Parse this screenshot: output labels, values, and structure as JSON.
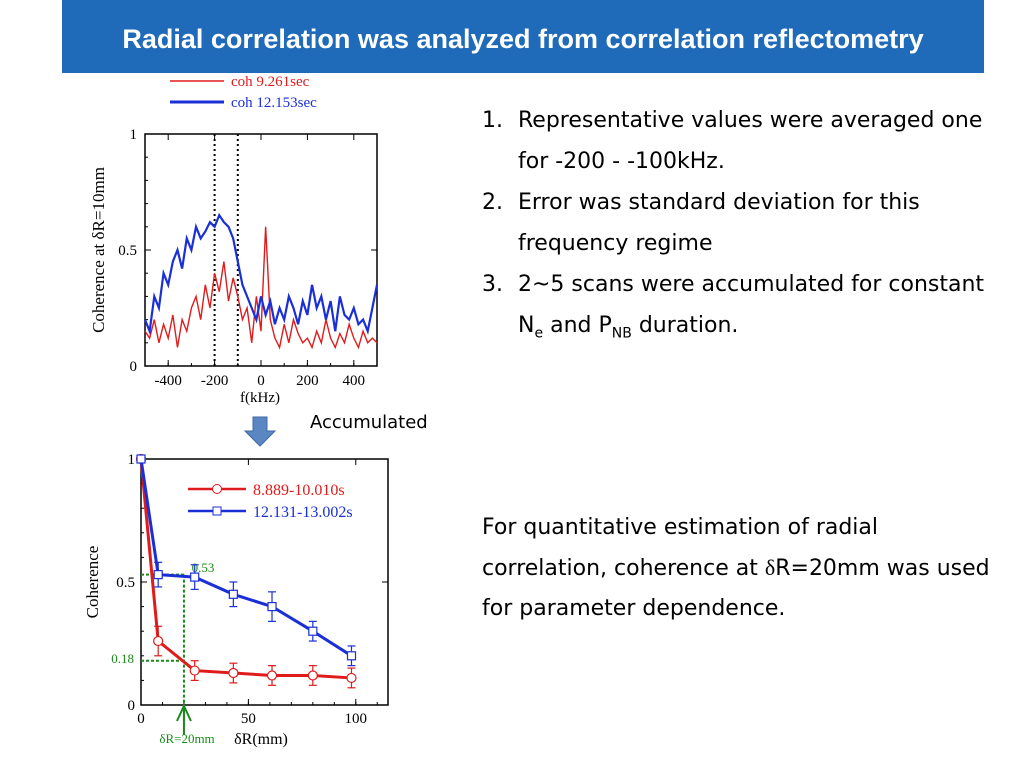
{
  "title": "Radial correlation was analyzed from correlation reflectometry",
  "list": [
    {
      "num": "1.",
      "text": "Representative values were averaged one for -200 - -100kHz."
    },
    {
      "num": "2.",
      "text": "Error was standard deviation for this frequency regime"
    },
    {
      "num": "3.",
      "pre": "2~5 scans were accumulated for constant N",
      "sub1": "e",
      "mid": " and P",
      "sub2": "NB",
      "post": " duration."
    }
  ],
  "paragraph": {
    "pre": "For quantitative estimation of radial correlation, coherence at ",
    "delta": "δ",
    "post": "R=20mm was used for parameter dependence."
  },
  "accumulated_label": "Accumulated",
  "colors": {
    "banner": "#1f6bb9",
    "red": "#e01b1b",
    "blue": "#1a2fd6",
    "green": "#1a8a1a",
    "arrow": "#5a86c2"
  },
  "chart_data": [
    {
      "type": "line",
      "xlabel": "f(kHz)",
      "ylabel": "Coherence at δR=10mm",
      "xlim": [
        -500,
        500
      ],
      "ylim": [
        0,
        1
      ],
      "xticks": [
        "-400",
        "-200",
        "0",
        "200",
        "400"
      ],
      "yticks": [
        "0",
        "0.5",
        "1"
      ],
      "vlines": [
        -200,
        -100
      ],
      "series": [
        {
          "name": "coh 9.261sec",
          "color": "#e01b1b",
          "x": [
            -500,
            -480,
            -460,
            -440,
            -420,
            -400,
            -380,
            -360,
            -340,
            -320,
            -300,
            -280,
            -260,
            -240,
            -220,
            -200,
            -180,
            -160,
            -140,
            -120,
            -100,
            -80,
            -60,
            -40,
            -20,
            0,
            20,
            40,
            60,
            80,
            100,
            120,
            140,
            160,
            180,
            200,
            220,
            240,
            260,
            280,
            300,
            320,
            340,
            360,
            380,
            400,
            420,
            440,
            460,
            480,
            500
          ],
          "y": [
            0.15,
            0.12,
            0.2,
            0.1,
            0.18,
            0.12,
            0.22,
            0.08,
            0.2,
            0.15,
            0.25,
            0.3,
            0.2,
            0.35,
            0.25,
            0.4,
            0.32,
            0.45,
            0.28,
            0.38,
            0.3,
            0.2,
            0.25,
            0.1,
            0.3,
            0.15,
            0.6,
            0.2,
            0.12,
            0.08,
            0.18,
            0.1,
            0.2,
            0.14,
            0.1,
            0.12,
            0.08,
            0.15,
            0.1,
            0.2,
            0.12,
            0.08,
            0.14,
            0.1,
            0.18,
            0.12,
            0.08,
            0.15,
            0.1,
            0.12,
            0.1
          ]
        },
        {
          "name": "coh 12.153sec",
          "color": "#1a2fd6",
          "x": [
            -500,
            -480,
            -460,
            -440,
            -420,
            -400,
            -380,
            -360,
            -340,
            -320,
            -300,
            -280,
            -260,
            -240,
            -220,
            -200,
            -180,
            -160,
            -140,
            -120,
            -100,
            -80,
            -60,
            -40,
            -20,
            0,
            20,
            40,
            60,
            80,
            100,
            120,
            140,
            160,
            180,
            200,
            220,
            240,
            260,
            280,
            300,
            320,
            340,
            360,
            380,
            400,
            420,
            440,
            460,
            480,
            500
          ],
          "y": [
            0.2,
            0.15,
            0.3,
            0.25,
            0.4,
            0.35,
            0.45,
            0.5,
            0.42,
            0.55,
            0.5,
            0.6,
            0.55,
            0.58,
            0.62,
            0.6,
            0.65,
            0.62,
            0.6,
            0.55,
            0.45,
            0.35,
            0.3,
            0.25,
            0.2,
            0.3,
            0.22,
            0.28,
            0.18,
            0.25,
            0.2,
            0.3,
            0.25,
            0.18,
            0.28,
            0.22,
            0.35,
            0.25,
            0.3,
            0.2,
            0.28,
            0.15,
            0.3,
            0.22,
            0.2,
            0.25,
            0.18,
            0.2,
            0.15,
            0.25,
            0.35
          ]
        }
      ]
    },
    {
      "type": "line",
      "xlabel": "δR(mm)",
      "ylabel": "Coherence",
      "xlim": [
        0,
        115
      ],
      "ylim": [
        0,
        1
      ],
      "xticks": [
        "0",
        "50",
        "100"
      ],
      "yticks": [
        "0",
        "0.5",
        "1"
      ],
      "annotations": [
        "0.53",
        "0.18",
        "δR=20mm"
      ],
      "series": [
        {
          "name": "8.889-10.010s",
          "color": "#e01b1b",
          "x": [
            0,
            8,
            25,
            43,
            61,
            80,
            98
          ],
          "y": [
            1.0,
            0.26,
            0.14,
            0.13,
            0.12,
            0.12,
            0.11
          ],
          "err": [
            0,
            0.06,
            0.04,
            0.04,
            0.04,
            0.04,
            0.04
          ]
        },
        {
          "name": "12.131-13.002s",
          "color": "#1a2fd6",
          "x": [
            0,
            8,
            25,
            43,
            61,
            80,
            98
          ],
          "y": [
            1.0,
            0.53,
            0.52,
            0.45,
            0.4,
            0.3,
            0.2
          ],
          "err": [
            0,
            0.05,
            0.05,
            0.05,
            0.06,
            0.04,
            0.04
          ]
        }
      ]
    }
  ]
}
